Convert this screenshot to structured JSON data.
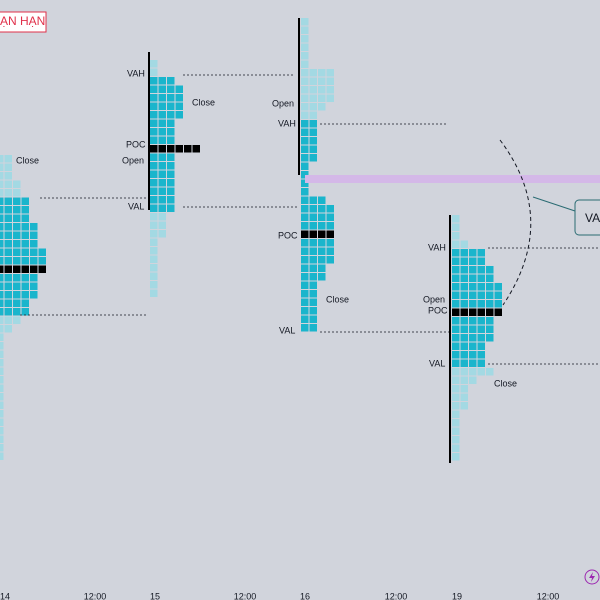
{
  "header": {
    "title": "ẠN HẠN"
  },
  "profiles": [
    {
      "labels": [
        "Close"
      ]
    },
    {
      "labels": [
        "VAH",
        "Close",
        "POC",
        "Open",
        "VAL"
      ]
    },
    {
      "labels": [
        "Open",
        "VAH",
        "POC",
        "Close",
        "VAL"
      ]
    },
    {
      "labels": [
        "VAH",
        "Open",
        "POC",
        "VAL",
        "Close"
      ]
    }
  ],
  "callout": "VA",
  "time_axis": [
    "14",
    "12:00",
    "15",
    "12:00",
    "16",
    "12:00",
    "19",
    "12:00"
  ]
}
